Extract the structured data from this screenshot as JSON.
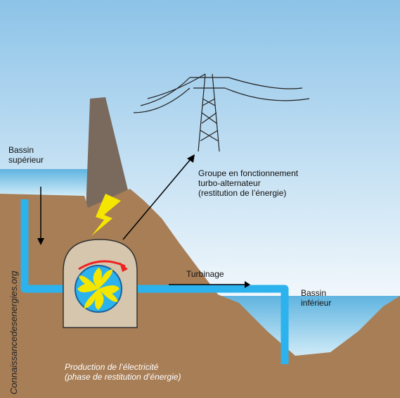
{
  "labels": {
    "upper_basin": [
      "Bassin",
      "supérieur"
    ],
    "group": [
      "Groupe en fonctionnement",
      "turbo-alternateur",
      "(restitution de l’énergie)"
    ],
    "turbining": "Turbinage",
    "lower_basin": [
      "Bassin",
      "inférieur"
    ],
    "production": [
      "Production de l’électricité",
      "(phase de restitution d’énergie)"
    ],
    "site": "Connaissancedesenergies.org"
  }
}
